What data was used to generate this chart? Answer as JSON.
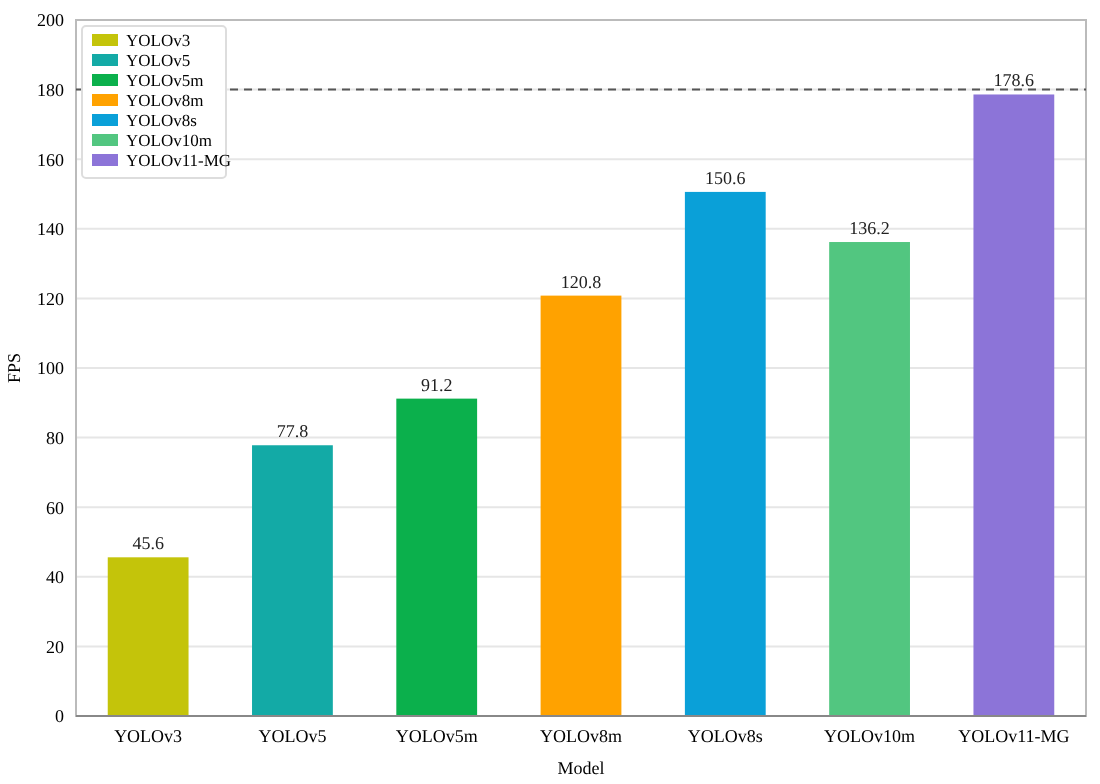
{
  "chart_data": {
    "type": "bar",
    "xlabel": "Model",
    "ylabel": "FPS",
    "categories": [
      "YOLOv3",
      "YOLOv5",
      "YOLOv5m",
      "YOLOv8m",
      "YOLOv8s",
      "YOLOv10m",
      "YOLOv11-MG"
    ],
    "series": [
      {
        "name": "YOLOv3",
        "color": "#c4c40a",
        "values": [
          45.6,
          null,
          null,
          null,
          null,
          null,
          null
        ]
      },
      {
        "name": "YOLOv5",
        "color": "#13aaa6",
        "values": [
          null,
          77.8,
          null,
          null,
          null,
          null,
          null
        ]
      },
      {
        "name": "YOLOv5m",
        "color": "#0bb04c",
        "values": [
          null,
          null,
          91.2,
          null,
          null,
          null,
          null
        ]
      },
      {
        "name": "YOLOv8m",
        "color": "#ffa200",
        "values": [
          null,
          null,
          null,
          120.8,
          null,
          null,
          null
        ]
      },
      {
        "name": "YOLOv8s",
        "color": "#0aa0d8",
        "values": [
          null,
          null,
          null,
          null,
          150.6,
          null,
          null
        ]
      },
      {
        "name": "YOLOv10m",
        "color": "#52c680",
        "values": [
          null,
          null,
          null,
          null,
          null,
          136.2,
          null
        ]
      },
      {
        "name": "YOLOv11-MG",
        "color": "#8c74d8",
        "values": [
          null,
          null,
          null,
          null,
          null,
          null,
          178.6
        ]
      }
    ],
    "ylim": [
      0,
      200
    ],
    "yticks": [
      0,
      20,
      40,
      60,
      80,
      100,
      120,
      140,
      160,
      180,
      200
    ],
    "grid": "y",
    "legend": "top left",
    "data_labels": true,
    "ref_lines": [
      {
        "axis": "y",
        "value": 180,
        "color": "#555555",
        "line_style": "dashed"
      }
    ]
  }
}
